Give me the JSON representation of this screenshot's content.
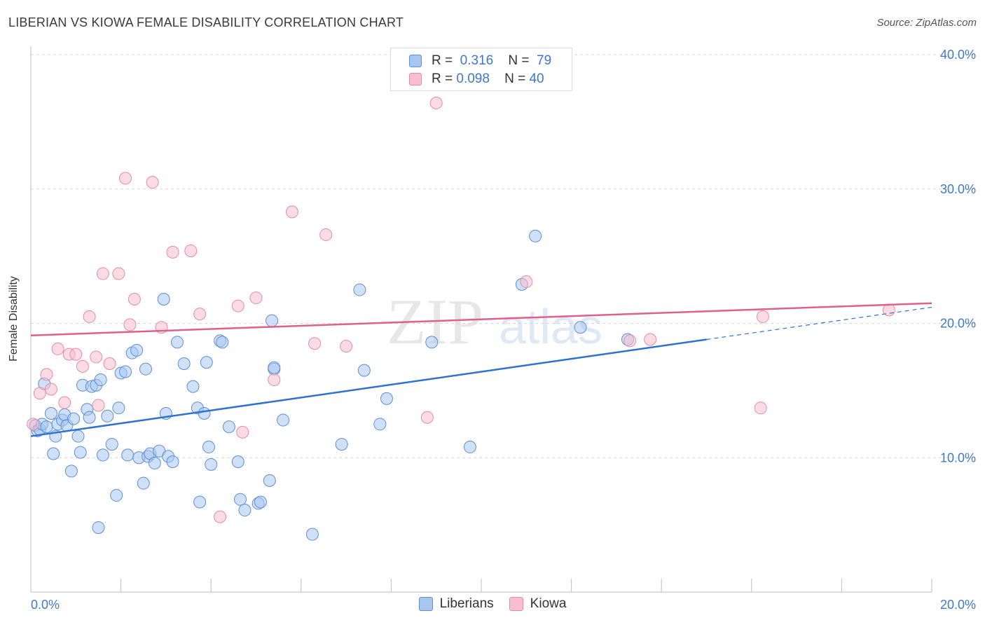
{
  "header": {
    "title": "LIBERIAN VS KIOWA FEMALE DISABILITY CORRELATION CHART",
    "source": "Source: ZipAtlas.com"
  },
  "watermark": {
    "zip": "ZIP",
    "atlas": "atlas"
  },
  "legend": {
    "rows": [
      {
        "r_label": "R =",
        "r_value": "0.316",
        "n_label": "N =",
        "n_value": "79"
      },
      {
        "r_label": "R =",
        "r_value": "0.098",
        "n_label": "N =",
        "n_value": "40"
      }
    ]
  },
  "colors": {
    "liberians_fill": "#a9c6ef",
    "liberians_stroke": "#5b8fd6",
    "liberians_line": "#2f72d0",
    "kiowa_fill": "#f7bfd0",
    "kiowa_stroke": "#e88aa7",
    "kiowa_line": "#e0608a",
    "tick_label": "#3f78c9",
    "grid": "#d9d9d9"
  },
  "chart_data": {
    "type": "scatter",
    "title": "LIBERIAN VS KIOWA FEMALE DISABILITY CORRELATION CHART",
    "xlabel": "",
    "ylabel": "Female Disability",
    "xlim": [
      0,
      20
    ],
    "ylim": [
      0,
      40
    ],
    "x_tick_labels": [
      "0.0%",
      "20.0%"
    ],
    "y_ticks": [
      10,
      20,
      30,
      40
    ],
    "y_tick_labels": [
      "10.0%",
      "20.0%",
      "30.0%",
      "40.0%"
    ],
    "grid": true,
    "legend_position": "top-center",
    "series": [
      {
        "name": "Liberians",
        "r": 0.316,
        "n": 79,
        "trend": {
          "x0": 0,
          "y0": 11.6,
          "x1": 15.0,
          "y1": 18.8,
          "dashed_to_x": 20,
          "dashed_to_y": 21.2
        },
        "points": [
          [
            0.1,
            12.4
          ],
          [
            0.15,
            12.0
          ],
          [
            0.2,
            12.1
          ],
          [
            0.25,
            12.5
          ],
          [
            0.3,
            15.5
          ],
          [
            0.35,
            12.3
          ],
          [
            0.45,
            13.3
          ],
          [
            0.5,
            10.3
          ],
          [
            0.55,
            11.6
          ],
          [
            0.6,
            12.5
          ],
          [
            0.7,
            12.8
          ],
          [
            0.75,
            13.2
          ],
          [
            0.8,
            12.4
          ],
          [
            0.9,
            9.0
          ],
          [
            0.95,
            12.9
          ],
          [
            1.05,
            11.6
          ],
          [
            1.1,
            10.4
          ],
          [
            1.15,
            15.4
          ],
          [
            1.25,
            13.6
          ],
          [
            1.3,
            13.0
          ],
          [
            1.35,
            15.3
          ],
          [
            1.45,
            15.4
          ],
          [
            1.5,
            4.8
          ],
          [
            1.55,
            15.8
          ],
          [
            1.6,
            10.2
          ],
          [
            1.7,
            13.1
          ],
          [
            1.8,
            11.0
          ],
          [
            1.9,
            7.2
          ],
          [
            1.95,
            13.7
          ],
          [
            2.0,
            16.3
          ],
          [
            2.1,
            16.4
          ],
          [
            2.15,
            10.2
          ],
          [
            2.25,
            17.8
          ],
          [
            2.35,
            18.0
          ],
          [
            2.4,
            10.0
          ],
          [
            2.5,
            8.1
          ],
          [
            2.55,
            16.6
          ],
          [
            2.6,
            10.1
          ],
          [
            2.65,
            10.3
          ],
          [
            2.75,
            9.6
          ],
          [
            2.85,
            10.5
          ],
          [
            2.95,
            21.8
          ],
          [
            3.0,
            13.3
          ],
          [
            3.05,
            10.1
          ],
          [
            3.15,
            9.7
          ],
          [
            3.25,
            18.6
          ],
          [
            3.4,
            17.0
          ],
          [
            3.6,
            15.3
          ],
          [
            3.7,
            13.7
          ],
          [
            3.75,
            6.7
          ],
          [
            3.85,
            13.3
          ],
          [
            3.9,
            17.1
          ],
          [
            3.95,
            10.8
          ],
          [
            4.0,
            9.5
          ],
          [
            4.2,
            18.7
          ],
          [
            4.25,
            18.6
          ],
          [
            4.4,
            12.3
          ],
          [
            4.6,
            9.7
          ],
          [
            4.65,
            6.9
          ],
          [
            4.75,
            6.1
          ],
          [
            5.05,
            6.6
          ],
          [
            5.1,
            6.7
          ],
          [
            5.3,
            8.3
          ],
          [
            5.35,
            20.2
          ],
          [
            5.4,
            16.6
          ],
          [
            5.4,
            16.7
          ],
          [
            5.6,
            12.8
          ],
          [
            6.25,
            4.3
          ],
          [
            6.9,
            11.0
          ],
          [
            7.3,
            22.5
          ],
          [
            7.4,
            16.5
          ],
          [
            7.75,
            12.5
          ],
          [
            7.9,
            14.4
          ],
          [
            8.9,
            18.6
          ],
          [
            9.75,
            10.8
          ],
          [
            10.9,
            22.9
          ],
          [
            11.2,
            26.5
          ],
          [
            12.2,
            19.7
          ],
          [
            13.25,
            18.8
          ]
        ]
      },
      {
        "name": "Kiowa",
        "r": 0.098,
        "n": 40,
        "trend": {
          "x0": 0,
          "y0": 19.1,
          "x1": 20,
          "y1": 21.5
        },
        "points": [
          [
            0.05,
            12.5
          ],
          [
            0.2,
            14.8
          ],
          [
            0.35,
            16.2
          ],
          [
            0.45,
            15.1
          ],
          [
            0.6,
            18.1
          ],
          [
            0.75,
            14.1
          ],
          [
            0.85,
            17.7
          ],
          [
            1.0,
            17.7
          ],
          [
            1.15,
            16.8
          ],
          [
            1.3,
            20.5
          ],
          [
            1.45,
            17.5
          ],
          [
            1.5,
            13.9
          ],
          [
            1.6,
            23.7
          ],
          [
            1.75,
            17.0
          ],
          [
            1.95,
            23.7
          ],
          [
            2.1,
            30.8
          ],
          [
            2.2,
            19.9
          ],
          [
            2.3,
            21.8
          ],
          [
            2.7,
            30.5
          ],
          [
            2.9,
            19.7
          ],
          [
            3.15,
            25.3
          ],
          [
            3.55,
            25.4
          ],
          [
            3.75,
            20.7
          ],
          [
            4.2,
            5.6
          ],
          [
            4.6,
            21.3
          ],
          [
            4.7,
            11.9
          ],
          [
            5.0,
            21.9
          ],
          [
            5.4,
            15.8
          ],
          [
            5.8,
            28.3
          ],
          [
            6.3,
            18.5
          ],
          [
            6.55,
            26.6
          ],
          [
            7.0,
            18.3
          ],
          [
            8.8,
            13.0
          ],
          [
            9.0,
            36.4
          ],
          [
            11.0,
            23.1
          ],
          [
            13.3,
            18.7
          ],
          [
            13.75,
            18.8
          ],
          [
            16.2,
            13.7
          ],
          [
            16.25,
            20.5
          ],
          [
            19.05,
            21.0
          ]
        ]
      }
    ]
  }
}
